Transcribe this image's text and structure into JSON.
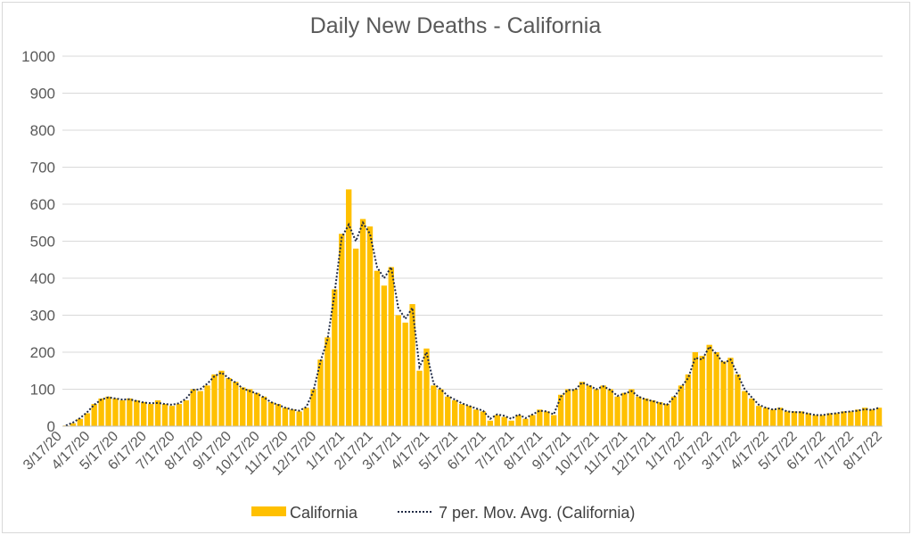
{
  "chart_data": {
    "type": "bar",
    "title": "Daily New Deaths - California",
    "xlabel": "",
    "ylabel": "",
    "ylim": [
      0,
      1000
    ],
    "yticks": [
      0,
      100,
      200,
      300,
      400,
      500,
      600,
      700,
      800,
      900,
      1000
    ],
    "xticks": [
      "3/17/20",
      "4/17/20",
      "5/17/20",
      "6/17/20",
      "7/17/20",
      "8/17/20",
      "9/17/20",
      "10/17/20",
      "11/17/20",
      "12/17/20",
      "1/17/21",
      "2/17/21",
      "3/17/21",
      "4/17/21",
      "5/17/21",
      "6/17/21",
      "7/17/21",
      "8/17/21",
      "9/17/21",
      "10/17/21",
      "11/17/21",
      "12/17/21",
      "1/17/22",
      "2/17/22",
      "3/17/22",
      "4/17/22",
      "5/17/22",
      "6/17/22",
      "7/17/22",
      "8/17/22"
    ],
    "grid": true,
    "legend_position": "bottom",
    "series": [
      {
        "name": "California",
        "kind": "bar",
        "color": "#FFC000",
        "values": [
          2,
          8,
          20,
          35,
          60,
          75,
          80,
          75,
          70,
          75,
          70,
          65,
          60,
          70,
          60,
          55,
          60,
          70,
          100,
          95,
          110,
          140,
          150,
          130,
          120,
          105,
          100,
          90,
          80,
          65,
          60,
          50,
          45,
          40,
          50,
          100,
          180,
          240,
          370,
          520,
          640,
          480,
          560,
          540,
          420,
          380,
          430,
          300,
          280,
          330,
          150,
          210,
          110,
          100,
          80,
          70,
          60,
          55,
          45,
          40,
          15,
          30,
          25,
          15,
          30,
          20,
          30,
          45,
          40,
          30,
          85,
          100,
          100,
          120,
          110,
          100,
          110,
          100,
          80,
          90,
          100,
          80,
          75,
          70,
          65,
          60,
          80,
          110,
          140,
          200,
          190,
          220,
          200,
          175,
          185,
          140,
          95,
          75,
          55,
          50,
          45,
          50,
          40,
          40,
          40,
          35,
          30,
          30,
          35,
          35,
          40,
          40,
          45,
          50,
          45,
          50
        ]
      },
      {
        "name": "7 per. Mov. Avg. (California)",
        "kind": "line",
        "style": "dotted",
        "color": "#1F2A44",
        "values": [
          2,
          10,
          22,
          38,
          58,
          72,
          78,
          75,
          72,
          73,
          68,
          64,
          62,
          63,
          60,
          58,
          62,
          75,
          98,
          100,
          115,
          135,
          145,
          130,
          118,
          102,
          95,
          88,
          78,
          65,
          58,
          50,
          45,
          42,
          52,
          95,
          175,
          235,
          360,
          510,
          545,
          500,
          550,
          520,
          430,
          400,
          430,
          320,
          290,
          320,
          160,
          200,
          115,
          100,
          82,
          72,
          62,
          55,
          48,
          42,
          20,
          32,
          28,
          20,
          32,
          22,
          32,
          42,
          40,
          32,
          80,
          98,
          98,
          118,
          110,
          100,
          108,
          98,
          82,
          88,
          95,
          80,
          72,
          68,
          62,
          58,
          78,
          105,
          130,
          185,
          180,
          215,
          195,
          170,
          180,
          140,
          100,
          78,
          58,
          50,
          45,
          48,
          40,
          38,
          38,
          34,
          30,
          30,
          33,
          35,
          38,
          40,
          42,
          46,
          44,
          50
        ]
      }
    ]
  }
}
